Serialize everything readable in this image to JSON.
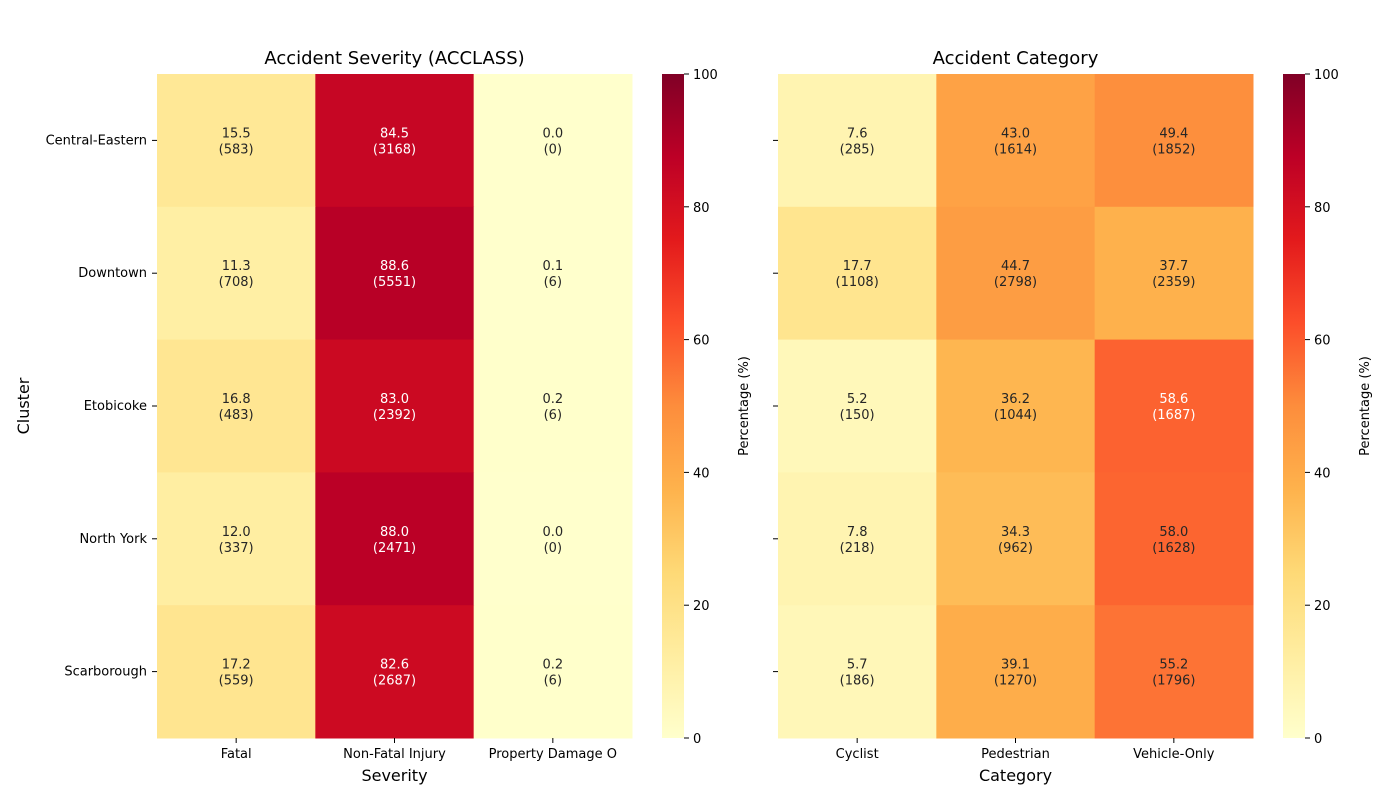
{
  "suptitle": "",
  "chart_data": [
    {
      "type": "heatmap",
      "title": "Accident Severity (ACCLASS)",
      "xlabel": "Severity",
      "ylabel": "Cluster",
      "rows": [
        "Central-Eastern",
        "Downtown",
        "Etobicoke",
        "North York",
        "Scarborough"
      ],
      "columns": [
        "Fatal",
        "Non-Fatal Injury",
        "Property Damage O"
      ],
      "percent": [
        [
          15.5,
          84.5,
          0.0
        ],
        [
          11.3,
          88.6,
          0.1
        ],
        [
          16.8,
          83.0,
          0.2
        ],
        [
          12.0,
          88.0,
          0.0
        ],
        [
          17.2,
          82.6,
          0.2
        ]
      ],
      "counts": [
        [
          583,
          3168,
          0
        ],
        [
          708,
          5551,
          6
        ],
        [
          483,
          2392,
          6
        ],
        [
          337,
          2471,
          0
        ],
        [
          559,
          2687,
          6
        ]
      ],
      "colorbar": {
        "label": "Percentage (%)",
        "range": [
          0,
          100
        ],
        "ticks": [
          0,
          20,
          40,
          60,
          80,
          100
        ],
        "colormap": "YlOrRd"
      }
    },
    {
      "type": "heatmap",
      "title": "Accident Category",
      "xlabel": "Category",
      "ylabel": "",
      "rows": [
        "Central-Eastern",
        "Downtown",
        "Etobicoke",
        "North York",
        "Scarborough"
      ],
      "columns": [
        "Cyclist",
        "Pedestrian",
        "Vehicle-Only"
      ],
      "percent": [
        [
          7.6,
          43.0,
          49.4
        ],
        [
          17.7,
          44.7,
          37.7
        ],
        [
          5.2,
          36.2,
          58.6
        ],
        [
          7.8,
          34.3,
          58.0
        ],
        [
          5.7,
          39.1,
          55.2
        ]
      ],
      "counts": [
        [
          285,
          1614,
          1852
        ],
        [
          1108,
          2798,
          2359
        ],
        [
          150,
          1044,
          1687
        ],
        [
          218,
          962,
          1628
        ],
        [
          186,
          1270,
          1796
        ]
      ],
      "colorbar": {
        "label": "Percentage (%)",
        "range": [
          0,
          100
        ],
        "ticks": [
          0,
          20,
          40,
          60,
          80,
          100
        ],
        "colormap": "YlOrRd"
      }
    }
  ]
}
